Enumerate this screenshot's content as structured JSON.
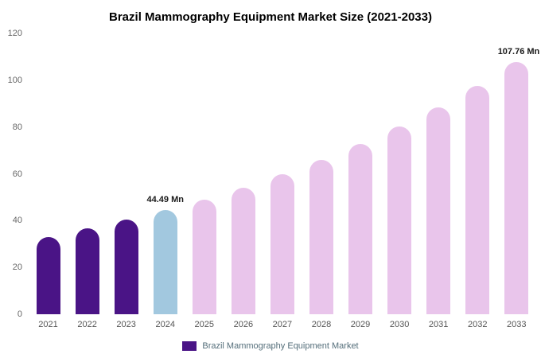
{
  "title": "Brazil Mammography Equipment Market Size (2021-2033)",
  "chart_data": {
    "type": "bar",
    "title": "Brazil Mammography Equipment Market Size (2021-2033)",
    "categories": [
      "2021",
      "2022",
      "2023",
      "2024",
      "2025",
      "2026",
      "2027",
      "2028",
      "2029",
      "2030",
      "2031",
      "2032",
      "2033"
    ],
    "values": [
      33.1,
      36.6,
      40.3,
      44.49,
      49.1,
      54.1,
      59.7,
      65.9,
      72.7,
      80.2,
      88.4,
      97.6,
      107.76
    ],
    "ylim": [
      0,
      120
    ],
    "yticks": [
      0,
      20,
      40,
      60,
      80,
      100,
      120
    ],
    "grid": false,
    "legend_position": "bottom",
    "legend_entries": [
      "Brazil Mammography Equipment Market"
    ],
    "annotations": [
      {
        "index": 3,
        "text": "44.49 Mn",
        "align": "center"
      },
      {
        "index": 12,
        "text": "107.76 Mn",
        "align": "right"
      }
    ],
    "bar_color_groups": [
      "purple",
      "purple",
      "purple",
      "blue",
      "pink",
      "pink",
      "pink",
      "pink",
      "pink",
      "pink",
      "pink",
      "pink",
      "pink"
    ],
    "palette": {
      "purple": "#4a1486",
      "blue": "#a2c8df",
      "pink": "#e9c5eb"
    }
  },
  "legend": {
    "label": "Brazil Mammography Equipment Market",
    "swatch_color": "#4a1486"
  }
}
